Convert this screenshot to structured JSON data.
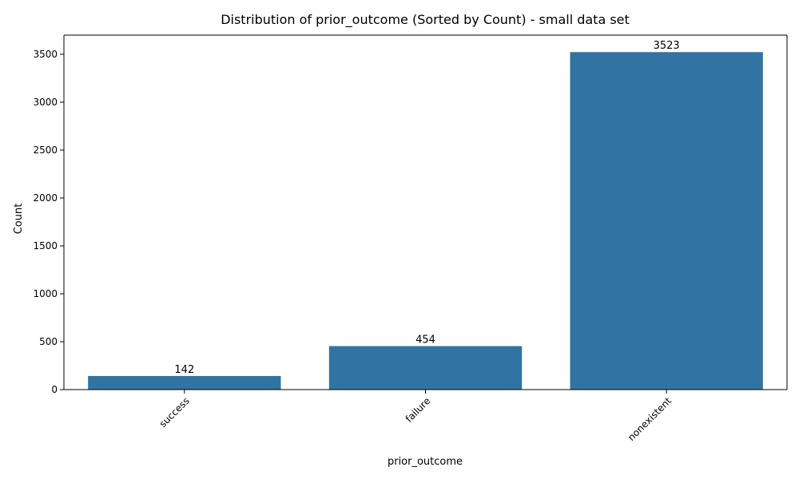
{
  "chart_data": {
    "type": "bar",
    "title": "Distribution of prior_outcome (Sorted by Count) - small data set",
    "xlabel": "prior_outcome",
    "ylabel": "Count",
    "categories": [
      "success",
      "failure",
      "nonexistent"
    ],
    "values": [
      142,
      454,
      3523
    ],
    "data_labels": [
      "142",
      "454",
      "3523"
    ],
    "ylim": [
      0,
      3700
    ],
    "yticks": [
      0,
      500,
      1000,
      1500,
      2000,
      2500,
      3000,
      3500
    ],
    "ytick_labels": [
      "0",
      "500",
      "1000",
      "1500",
      "2000",
      "2500",
      "3000",
      "3500"
    ],
    "grid": false,
    "legend": "none",
    "bar_color": "#3274a1"
  }
}
